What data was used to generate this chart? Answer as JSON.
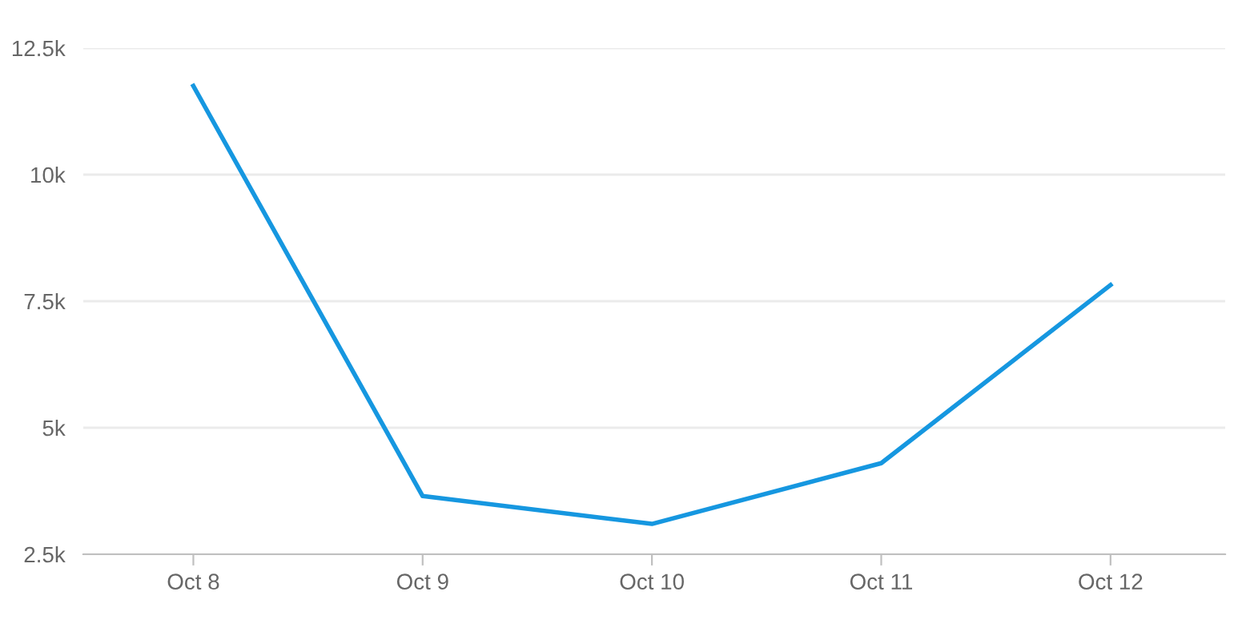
{
  "chart_data": {
    "type": "line",
    "categories": [
      "Oct 8",
      "Oct 9",
      "Oct 10",
      "Oct 11",
      "Oct 12"
    ],
    "series": [
      {
        "color": "#1697e0",
        "values": [
          11750,
          3650,
          3100,
          4300,
          7820
        ]
      }
    ],
    "ylim": [
      2500,
      12500
    ],
    "yticks": [
      {
        "value": 2500,
        "label": "2.5k"
      },
      {
        "value": 5000,
        "label": "5k"
      },
      {
        "value": 7500,
        "label": "7.5k"
      },
      {
        "value": 10000,
        "label": "10k"
      },
      {
        "value": 12500,
        "label": "12.5k"
      }
    ],
    "grid": "y",
    "marker": "none",
    "line_style": "solid"
  }
}
